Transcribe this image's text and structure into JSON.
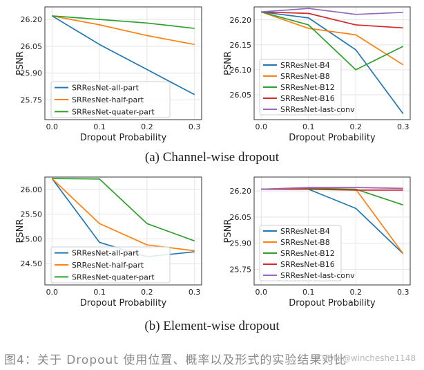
{
  "chart_data": [
    {
      "type": "line",
      "xlabel": "Dropout Probability",
      "ylabel": "PSNR",
      "x": [
        0.0,
        0.1,
        0.2,
        0.3
      ],
      "x_ticks": [
        "0.0",
        "0.1",
        "0.2",
        "0.3"
      ],
      "ylim": [
        25.64,
        26.27
      ],
      "y_ticks": [
        25.75,
        25.9,
        26.05,
        26.2
      ],
      "y_tick_labels": [
        "25.75",
        "25.90",
        "26.05",
        "26.20"
      ],
      "legend_position": "lower-left",
      "series": [
        {
          "name": "SRResNet-all-part",
          "color": "#1f77b4",
          "values": [
            26.22,
            26.06,
            25.92,
            25.78
          ]
        },
        {
          "name": "SRResNet-half-part",
          "color": "#ff7f0e",
          "values": [
            26.22,
            26.17,
            26.11,
            26.06
          ]
        },
        {
          "name": "SRResNet-quater-part",
          "color": "#2ca02c",
          "values": [
            26.22,
            26.2,
            26.18,
            26.15
          ]
        }
      ]
    },
    {
      "type": "line",
      "xlabel": "Dropout Probability",
      "ylabel": "PSNR",
      "x": [
        0.0,
        0.1,
        0.2,
        0.3
      ],
      "x_ticks": [
        "0.0",
        "0.1",
        "0.2",
        "0.3"
      ],
      "ylim": [
        26.0,
        26.226
      ],
      "y_ticks": [
        26.05,
        26.1,
        26.15,
        26.2
      ],
      "y_tick_labels": [
        "26.05",
        "26.10",
        "26.15",
        "26.20"
      ],
      "legend_position": "lower-left",
      "series": [
        {
          "name": "SRResNet-B4",
          "color": "#1f77b4",
          "values": [
            26.216,
            26.204,
            26.14,
            26.012
          ]
        },
        {
          "name": "SRResNet-B8",
          "color": "#ff7f0e",
          "values": [
            26.216,
            26.183,
            26.17,
            26.11
          ]
        },
        {
          "name": "SRResNet-B12",
          "color": "#2ca02c",
          "values": [
            26.216,
            26.19,
            26.1,
            26.147
          ]
        },
        {
          "name": "SRResNet-B16",
          "color": "#d62728",
          "values": [
            26.216,
            26.213,
            26.19,
            26.184
          ]
        },
        {
          "name": "SRResNet-last-conv",
          "color": "#9467bd",
          "values": [
            26.216,
            26.223,
            26.211,
            26.215
          ]
        }
      ]
    },
    {
      "type": "line",
      "xlabel": "Dropout Probability",
      "ylabel": "PSNR",
      "x": [
        0.0,
        0.1,
        0.2,
        0.3
      ],
      "x_ticks": [
        "0.0",
        "0.1",
        "0.2",
        "0.3"
      ],
      "ylim": [
        24.07,
        26.25
      ],
      "y_ticks": [
        24.5,
        25.0,
        25.5,
        26.0
      ],
      "y_tick_labels": [
        "24.50",
        "25.00",
        "25.50",
        "26.00"
      ],
      "legend_position": "lower-left",
      "series": [
        {
          "name": "SRResNet-all-part",
          "color": "#1f77b4",
          "values": [
            26.22,
            24.93,
            24.64,
            24.74
          ]
        },
        {
          "name": "SRResNet-half-part",
          "color": "#ff7f0e",
          "values": [
            26.22,
            25.31,
            24.88,
            24.76
          ]
        },
        {
          "name": "SRResNet-quater-part",
          "color": "#2ca02c",
          "values": [
            26.22,
            26.21,
            25.31,
            24.96
          ]
        }
      ]
    },
    {
      "type": "line",
      "xlabel": "Dropout Probability",
      "ylabel": "PSNR",
      "x": [
        0.0,
        0.1,
        0.2,
        0.3
      ],
      "x_ticks": [
        "0.0",
        "0.1",
        "0.2",
        "0.3"
      ],
      "ylim": [
        25.66,
        26.28
      ],
      "y_ticks": [
        25.75,
        25.9,
        26.05,
        26.2
      ],
      "y_tick_labels": [
        "25.75",
        "25.90",
        "26.05",
        "26.20"
      ],
      "legend_position": "lower-left",
      "series": [
        {
          "name": "SRResNet-B4",
          "color": "#1f77b4",
          "values": [
            26.21,
            26.21,
            26.1,
            25.84
          ]
        },
        {
          "name": "SRResNet-B8",
          "color": "#ff7f0e",
          "values": [
            26.21,
            26.215,
            26.21,
            25.84
          ]
        },
        {
          "name": "SRResNet-B12",
          "color": "#2ca02c",
          "values": [
            26.21,
            26.215,
            26.21,
            26.12
          ]
        },
        {
          "name": "SRResNet-B16",
          "color": "#d62728",
          "values": [
            26.21,
            26.21,
            26.205,
            26.205
          ]
        },
        {
          "name": "SRResNet-last-conv",
          "color": "#9467bd",
          "values": [
            26.21,
            26.22,
            26.22,
            26.215
          ]
        }
      ]
    }
  ],
  "captions": {
    "a": "(a) Channel-wise dropout",
    "b": "(b) Element-wise dropout",
    "figure": "图4：关于 Dropout 使用位置、概率以及形式的实验结果对比",
    "watermark": "CSDN @wincheshe1148"
  }
}
